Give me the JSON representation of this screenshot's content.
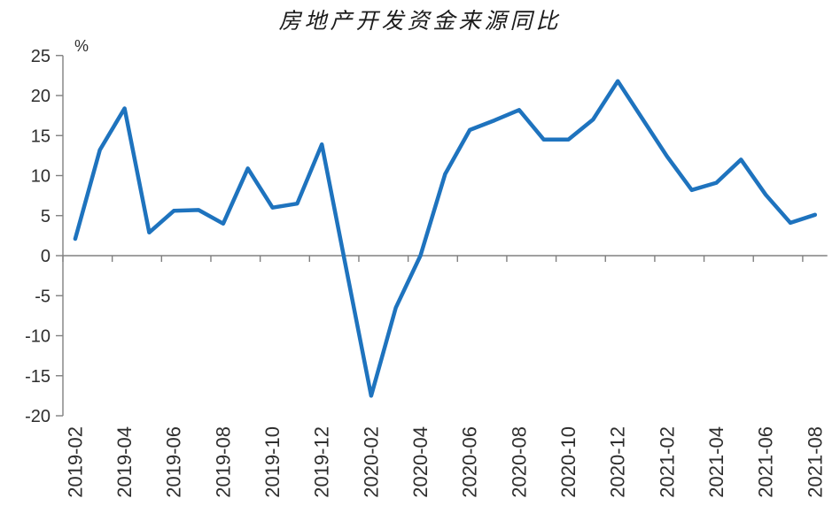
{
  "chart_data": {
    "type": "line",
    "title": "房地产开发资金来源同比",
    "unit_label": "%",
    "legend": "none",
    "grid": "off",
    "ylim": [
      -20,
      25
    ],
    "y_ticks": [
      25,
      20,
      15,
      10,
      5,
      0,
      -5,
      -10,
      -15,
      -20
    ],
    "x_tick_labels": [
      "2019-02",
      "2019-04",
      "2019-06",
      "2019-08",
      "2019-10",
      "2019-12",
      "2020-02",
      "2020-04",
      "2020-06",
      "2020-08",
      "2020-10",
      "2020-12",
      "2021-02",
      "2021-04",
      "2021-06",
      "2021-08"
    ],
    "series": [
      {
        "name": "房地产开发资金来源同比",
        "points": [
          {
            "month": "2019-02",
            "value": 2.1
          },
          {
            "month": "2019-03",
            "value": 13.2
          },
          {
            "month": "2019-04",
            "value": 18.4
          },
          {
            "month": "2019-05",
            "value": 2.9
          },
          {
            "month": "2019-06",
            "value": 5.6
          },
          {
            "month": "2019-07",
            "value": 5.7
          },
          {
            "month": "2019-08",
            "value": 4.0
          },
          {
            "month": "2019-09",
            "value": 10.9
          },
          {
            "month": "2019-10",
            "value": 6.0
          },
          {
            "month": "2019-11",
            "value": 6.5
          },
          {
            "month": "2019-12",
            "value": 13.9
          },
          {
            "month": "2020-02",
            "value": -17.5
          },
          {
            "month": "2020-03",
            "value": -6.5
          },
          {
            "month": "2020-04",
            "value": 0.0
          },
          {
            "month": "2020-05",
            "value": 10.2
          },
          {
            "month": "2020-06",
            "value": 15.7
          },
          {
            "month": "2020-07",
            "value": 16.9
          },
          {
            "month": "2020-08",
            "value": 18.2
          },
          {
            "month": "2020-09",
            "value": 14.5
          },
          {
            "month": "2020-10",
            "value": 14.5
          },
          {
            "month": "2020-11",
            "value": 17.0
          },
          {
            "month": "2020-12",
            "value": 21.8
          },
          {
            "month": "2021-02",
            "value": 12.4
          },
          {
            "month": "2021-03",
            "value": 8.2
          },
          {
            "month": "2021-04",
            "value": 9.1
          },
          {
            "month": "2021-05",
            "value": 12.0
          },
          {
            "month": "2021-06",
            "value": 7.6
          },
          {
            "month": "2021-07",
            "value": 4.1
          },
          {
            "month": "2021-08",
            "value": 5.1
          }
        ]
      }
    ],
    "colors": {
      "line": "#1E73BE",
      "axis": "#808080",
      "tick_label": "#2e2e2e",
      "title": "#1b1b1b"
    }
  }
}
